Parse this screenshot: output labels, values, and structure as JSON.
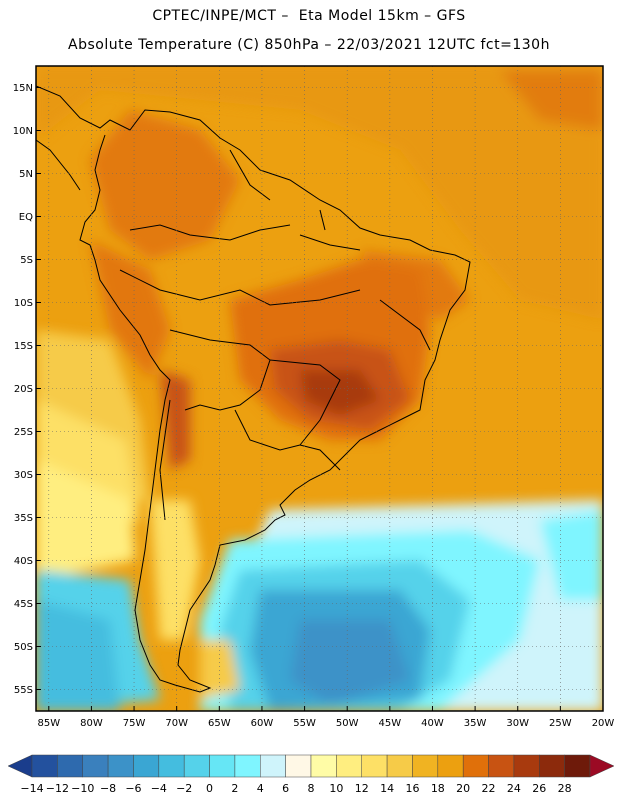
{
  "header": {
    "line1": "CPTEC/INPE/MCT –  Eta Model 15km – GFS",
    "line2": "Absolute Temperature (C) 850hPa – 22/03/2021 12UTC fct=130h"
  },
  "map": {
    "lat_labels": [
      "15N",
      "10N",
      "5N",
      "EQ",
      "5S",
      "10S",
      "15S",
      "20S",
      "25S",
      "30S",
      "35S",
      "40S",
      "45S",
      "50S",
      "55S"
    ],
    "lon_labels": [
      "85W",
      "80W",
      "75W",
      "70W",
      "65W",
      "60W",
      "55W",
      "50W",
      "45W",
      "40W",
      "35W",
      "30W",
      "25W",
      "20W"
    ],
    "lat_range": [
      17.5,
      -57.5
    ],
    "lon_range": [
      -86.5,
      -20
    ],
    "gridlines": "dotted"
  },
  "colorbar": {
    "labels": [
      "-14",
      "-12",
      "-10",
      "-8",
      "-6",
      "-4",
      "-2",
      "0",
      "2",
      "4",
      "6",
      "8",
      "10",
      "12",
      "14",
      "16",
      "18",
      "20",
      "22",
      "24",
      "26",
      "28"
    ],
    "colors": [
      "#1a3d8c",
      "#23519e",
      "#2e6aae",
      "#3a80bd",
      "#3c92c8",
      "#3aa6d3",
      "#44bddf",
      "#55d2ea",
      "#66e6f5",
      "#7ff5ff",
      "#cff4fb",
      "#fff8e6",
      "#fffca6",
      "#ffee80",
      "#fde066",
      "#f6cb48",
      "#f0b322",
      "#eca010",
      "#e0700a",
      "#c85312",
      "#a83a0e",
      "#8c2a0c",
      "#6e1a0a",
      "#9b0a24"
    ]
  }
}
